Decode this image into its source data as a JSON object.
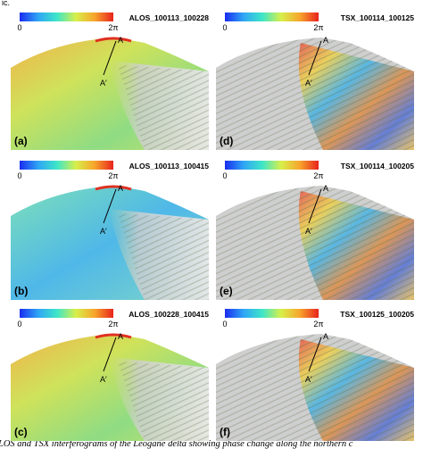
{
  "top_fragment": "ic.",
  "colorbar": {
    "min_label": "0",
    "max_label": "2π"
  },
  "profile": {
    "start": "A",
    "end": "A′"
  },
  "panels": [
    {
      "label": "(a)",
      "title": "ALOS_100113_100228",
      "sensor": "ALOS"
    },
    {
      "label": "(d)",
      "title": "TSX_100114_100125",
      "sensor": "TSX"
    },
    {
      "label": "(b)",
      "title": "ALOS_100113_100415",
      "sensor": "ALOS"
    },
    {
      "label": "(e)",
      "title": "TSX_100114_100205",
      "sensor": "TSX"
    },
    {
      "label": "(c)",
      "title": "ALOS_100228_100415",
      "sensor": "ALOS"
    },
    {
      "label": "(f)",
      "title": "TSX_100125_100205",
      "sensor": "TSX"
    }
  ],
  "caption": "LOS and TSX interferograms of the Leogane delta showing phase change along the northern c"
}
